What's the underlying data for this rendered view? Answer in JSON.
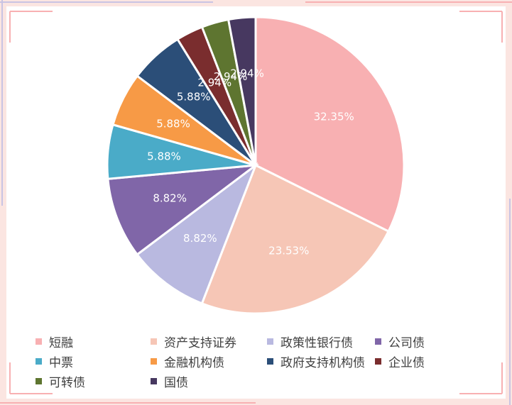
{
  "chart_data": {
    "type": "pie",
    "categories": [
      "短融",
      "资产支持证券",
      "政策性银行债",
      "公司债",
      "中票",
      "金融机构债",
      "政府支持机构债",
      "企业债",
      "可转债",
      "国债"
    ],
    "values": [
      32.35,
      23.53,
      8.82,
      8.82,
      5.88,
      5.88,
      5.88,
      2.94,
      2.94,
      2.94
    ],
    "data_labels": [
      "32.35%",
      "23.53%",
      "8.82%",
      "8.82%",
      "5.88%",
      "5.88%",
      "5.88%",
      "2.94%",
      "2.94%",
      "2.94%"
    ],
    "colors": [
      "#f8b0b2",
      "#f6c6b6",
      "#b9b9e0",
      "#8066a8",
      "#4aabc8",
      "#f79a46",
      "#2b4e78",
      "#7a2d2e",
      "#5e7530",
      "#473860"
    ],
    "label_color": "#ffffff",
    "legend_position": "bottom",
    "start_angle": "12 o'clock",
    "direction": "clockwise",
    "slice_border_color": "#ffffff"
  },
  "frame": {
    "outer_color": "#fbe5e1",
    "accent_colors": [
      "#f8b0b2",
      "#c9c3e3"
    ]
  }
}
